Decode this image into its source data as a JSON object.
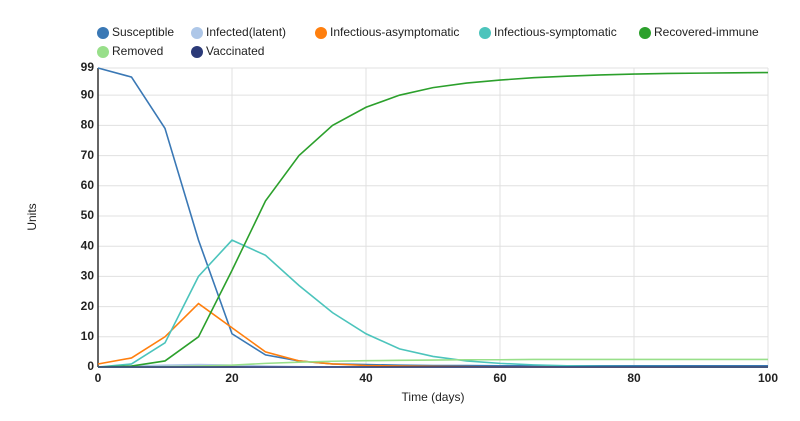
{
  "chart_data": {
    "type": "line",
    "xlabel": "Time (days)",
    "ylabel": "Units",
    "x": [
      0,
      5,
      10,
      15,
      20,
      25,
      30,
      35,
      40,
      45,
      50,
      55,
      60,
      65,
      70,
      75,
      80,
      85,
      90,
      95,
      100
    ],
    "xlim": [
      0,
      100
    ],
    "xticks": [
      0,
      20,
      40,
      60,
      80,
      100
    ],
    "ylim": [
      0,
      99
    ],
    "yticks": [
      0,
      10,
      20,
      30,
      40,
      50,
      60,
      70,
      80,
      90,
      99
    ],
    "grid": true,
    "legend": "top",
    "series": [
      {
        "name": "Susceptible",
        "color": "#3a78b5",
        "values": [
          99,
          96,
          79,
          42,
          11,
          4,
          2,
          1,
          0.8,
          0.6,
          0.5,
          0.5,
          0.4,
          0.4,
          0.4,
          0.4,
          0.4,
          0.4,
          0.4,
          0.4,
          0.4
        ]
      },
      {
        "name": "Infected(latent)",
        "color": "#aec7e8",
        "values": [
          0,
          0.3,
          0.6,
          0.8,
          0.6,
          0.3,
          0.1,
          0,
          0,
          0,
          0,
          0,
          0,
          0,
          0,
          0,
          0,
          0,
          0,
          0,
          0
        ]
      },
      {
        "name": "Infectious-asymptomatic",
        "color": "#ff7f0e",
        "values": [
          1,
          3,
          10,
          21,
          13,
          5,
          2,
          1,
          0.5,
          0.3,
          0.2,
          0.1,
          0,
          0,
          0,
          0,
          0,
          0,
          0,
          0,
          0
        ]
      },
      {
        "name": "Infectious-symptomatic",
        "color": "#4cc4bc",
        "values": [
          0,
          1,
          8,
          30,
          42,
          37,
          27,
          18,
          11,
          6,
          3.5,
          2,
          1.2,
          0.7,
          0.4,
          0.2,
          0.1,
          0.1,
          0,
          0,
          0
        ]
      },
      {
        "name": "Recovered-immune",
        "color": "#2ca02c",
        "values": [
          0,
          0.3,
          2,
          10,
          32,
          55,
          70,
          80,
          86,
          90,
          92.5,
          94,
          95,
          95.8,
          96.3,
          96.7,
          97,
          97.2,
          97.3,
          97.4,
          97.5
        ]
      },
      {
        "name": "Removed",
        "color": "#98df8a",
        "values": [
          0,
          0,
          0.1,
          0.3,
          0.6,
          1.2,
          1.6,
          1.9,
          2.1,
          2.2,
          2.3,
          2.4,
          2.4,
          2.5,
          2.5,
          2.5,
          2.5,
          2.5,
          2.5,
          2.5,
          2.5
        ]
      },
      {
        "name": "Vaccinated",
        "color": "#2b3a78",
        "values": [
          0,
          0,
          0,
          0,
          0,
          0,
          0,
          0,
          0,
          0,
          0,
          0,
          0,
          0,
          0,
          0,
          0,
          0,
          0,
          0,
          0
        ]
      }
    ]
  }
}
